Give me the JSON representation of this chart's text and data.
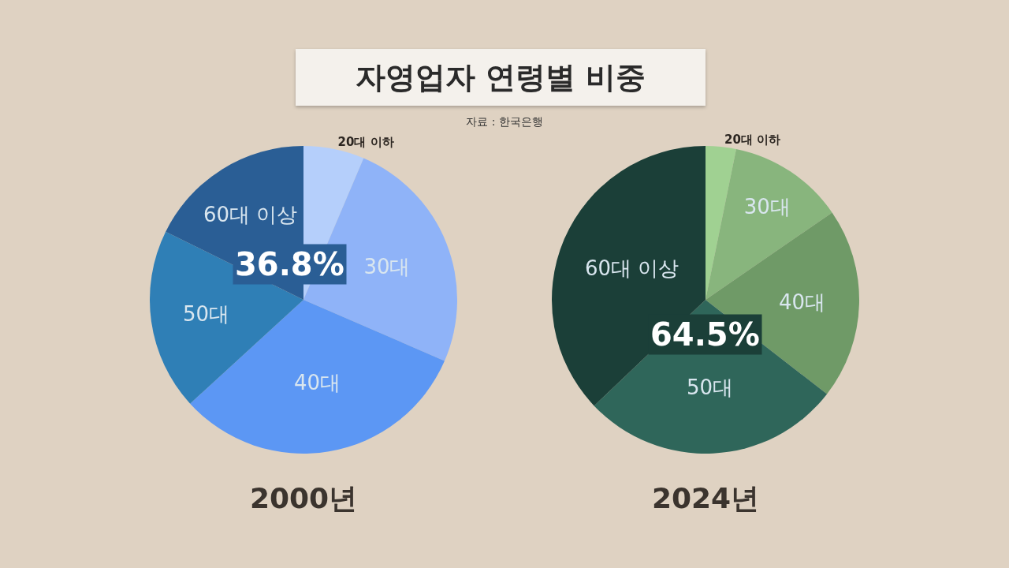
{
  "chart_data": [
    {
      "type": "pie",
      "title": "자영업자 연령별 비중",
      "subtitle": "자료 : 한국은행",
      "xlabel": "2000년",
      "categories": [
        "20대 이하",
        "30대",
        "40대",
        "50대",
        "60대 이상"
      ],
      "values": [
        6.4,
        25.1,
        31.7,
        19.1,
        17.7
      ],
      "colors": [
        "#b5cffb",
        "#8fb3f8",
        "#5c97f4",
        "#2f7fb6",
        "#2a5e95"
      ],
      "annotations": [
        "36.8%"
      ]
    },
    {
      "type": "pie",
      "xlabel": "2024년",
      "categories": [
        "20대 이하",
        "30대",
        "40대",
        "50대",
        "60대 이상"
      ],
      "values": [
        3.2,
        12.2,
        20.1,
        27.4,
        37.1
      ],
      "colors": [
        "#a0d192",
        "#88b57d",
        "#6f9a67",
        "#2f665a",
        "#1b3f38"
      ],
      "annotations": [
        "64.5%"
      ]
    }
  ]
}
